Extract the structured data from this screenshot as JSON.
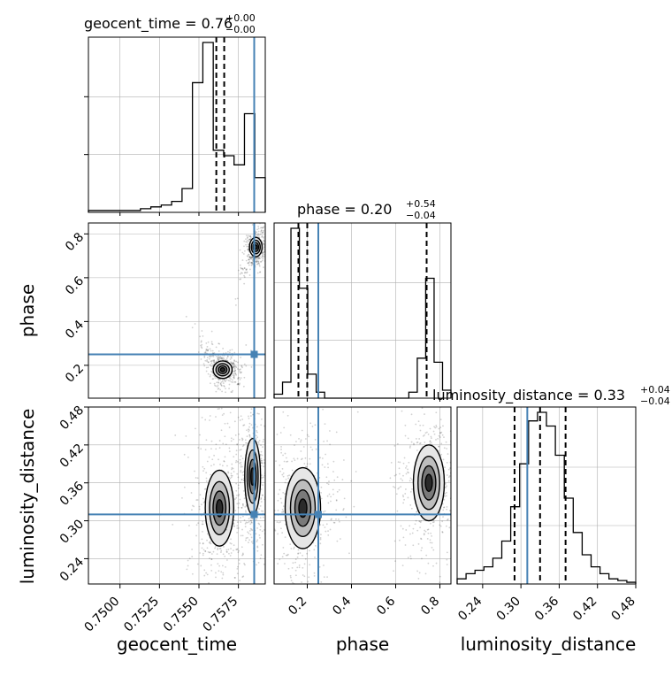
{
  "chart_data": {
    "type": "corner",
    "parameters": [
      {
        "name": "geocent_time",
        "label": "geocent_time",
        "truth": 0.7585,
        "range": [
          0.748,
          0.7592
        ],
        "ticks": [
          {
            "v": 0.75,
            "label": "0.7500"
          },
          {
            "v": 0.7525,
            "label": "0.7525"
          },
          {
            "v": 0.755,
            "label": "0.7550"
          },
          {
            "v": 0.7575,
            "label": "0.7575"
          }
        ],
        "quantiles": [
          0.7561,
          0.7566,
          0.7585
        ],
        "title_main": "geocent_time = 0.76",
        "title_plus": "+0.00",
        "title_minus": "−0.00",
        "hist": [
          0.01,
          0.01,
          0.01,
          0.01,
          0.01,
          0.02,
          0.03,
          0.04,
          0.06,
          0.13,
          0.71,
          0.93,
          0.34,
          0.31,
          0.26,
          0.54,
          0.19
        ]
      },
      {
        "name": "phase",
        "label": "phase",
        "truth": 0.25,
        "range": [
          0.05,
          0.85
        ],
        "ticks": [
          {
            "v": 0.2,
            "label": "0.2"
          },
          {
            "v": 0.4,
            "label": "0.4"
          },
          {
            "v": 0.6,
            "label": "0.6"
          },
          {
            "v": 0.8,
            "label": "0.8"
          }
        ],
        "quantiles": [
          0.16,
          0.2,
          0.74
        ],
        "title_main": "phase = 0.20",
        "title_plus": "+0.54",
        "title_minus": "−0.04",
        "hist": [
          0.02,
          0.08,
          0.85,
          0.55,
          0.12,
          0.03,
          0,
          0,
          0,
          0,
          0,
          0,
          0,
          0,
          0,
          0,
          0.03,
          0.2,
          0.6,
          0.18,
          0.04
        ]
      },
      {
        "name": "luminosity_distance",
        "label": "luminosity_distance",
        "truth": 0.31,
        "range": [
          0.2,
          0.48
        ],
        "ticks": [
          {
            "v": 0.24,
            "label": "0.24"
          },
          {
            "v": 0.3,
            "label": "0.30"
          },
          {
            "v": 0.36,
            "label": "0.36"
          },
          {
            "v": 0.42,
            "label": "0.42"
          },
          {
            "v": 0.48,
            "label": "0.48"
          }
        ],
        "quantiles": [
          0.29,
          0.33,
          0.37
        ],
        "title_main": "luminosity_distance = 0.33",
        "title_plus": "+0.04",
        "title_minus": "−0.04",
        "hist": [
          0.03,
          0.06,
          0.08,
          0.1,
          0.15,
          0.25,
          0.45,
          0.7,
          0.95,
          1.0,
          0.92,
          0.75,
          0.5,
          0.3,
          0.17,
          0.1,
          0.06,
          0.03,
          0.02,
          0.01
        ]
      }
    ],
    "clusters": {
      "geocent_time-phase": [
        {
          "x": 0.7565,
          "y": 0.18,
          "sx": 0.0003,
          "sy": 0.02
        },
        {
          "x": 0.7586,
          "y": 0.74,
          "sx": 0.0002,
          "sy": 0.022
        }
      ],
      "geocent_time-luminosity_distance": [
        {
          "x": 0.7563,
          "y": 0.32,
          "sx": 0.00045,
          "sy": 0.03
        },
        {
          "x": 0.7584,
          "y": 0.37,
          "sx": 0.00025,
          "sy": 0.03
        }
      ],
      "phase-luminosity_distance": [
        {
          "x": 0.18,
          "y": 0.32,
          "sx": 0.04,
          "sy": 0.032
        },
        {
          "x": 0.75,
          "y": 0.36,
          "sx": 0.035,
          "sy": 0.03
        }
      ]
    },
    "colors": {
      "truth": "#4682b4",
      "hist": "#000000",
      "grid": "#b0b0b0",
      "points": "#000000"
    },
    "grid": true
  }
}
